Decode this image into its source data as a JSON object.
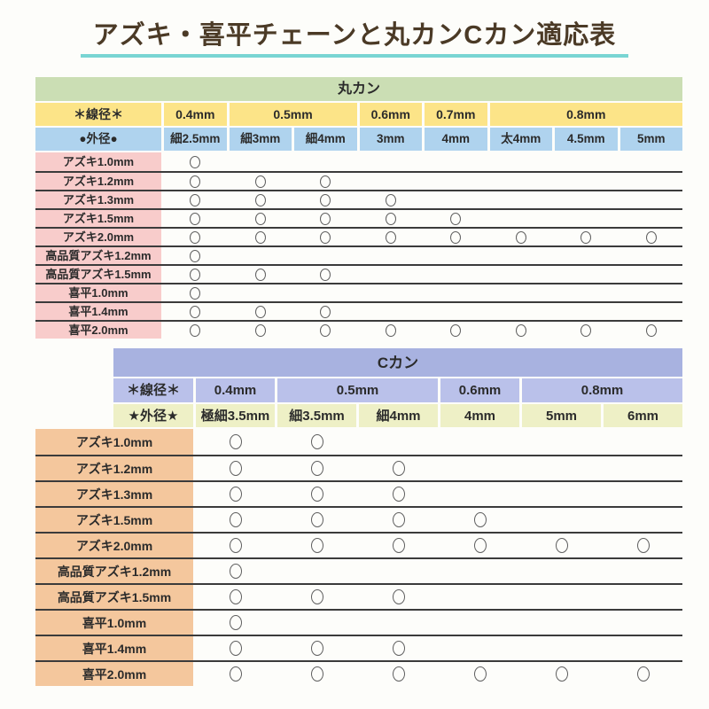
{
  "title": "アズキ・喜平チェーンと丸カンCカン適応表",
  "mark_symbol": "○",
  "colors": {
    "title_text": "#4b3a26",
    "title_underline": "#79d5d3",
    "maru_title_bg": "#cbdeb4",
    "maru_senkei_bg": "#fce488",
    "maru_gaikei_bg": "#afd3ee",
    "maru_label_bg": "#f8cccb",
    "c_title_bg": "#a8b2e0",
    "c_senkei_bg": "#bac1ea",
    "c_gaikei_bg": "#eef0c6",
    "c_label_bg": "#f4c79d",
    "row_line": "#3b3b3b",
    "circle": "#5f5f5f",
    "cell_text": "#2b2b2b"
  },
  "maru_table": {
    "title": "丸カン",
    "senkei_label": "＊線径＊",
    "gaikei_label": "●外径●",
    "senkei_groups": [
      {
        "label": "0.4mm",
        "span": 1
      },
      {
        "label": "0.5mm",
        "span": 2
      },
      {
        "label": "0.6mm",
        "span": 1
      },
      {
        "label": "0.7mm",
        "span": 1
      },
      {
        "label": "0.8mm",
        "span": 3
      }
    ],
    "gaikei_cols": [
      "細2.5mm",
      "細3mm",
      "細4mm",
      "3mm",
      "4mm",
      "太4mm",
      "4.5mm",
      "5mm"
    ],
    "rows": [
      {
        "label": "アズキ1.0mm",
        "marks": [
          1,
          0,
          0,
          0,
          0,
          0,
          0,
          0
        ]
      },
      {
        "label": "アズキ1.2mm",
        "marks": [
          1,
          1,
          1,
          0,
          0,
          0,
          0,
          0
        ]
      },
      {
        "label": "アズキ1.3mm",
        "marks": [
          1,
          1,
          1,
          1,
          0,
          0,
          0,
          0
        ]
      },
      {
        "label": "アズキ1.5mm",
        "marks": [
          1,
          1,
          1,
          1,
          1,
          0,
          0,
          0
        ]
      },
      {
        "label": "アズキ2.0mm",
        "marks": [
          1,
          1,
          1,
          1,
          1,
          1,
          1,
          1
        ]
      },
      {
        "label": "高品質アズキ1.2mm",
        "marks": [
          1,
          0,
          0,
          0,
          0,
          0,
          0,
          0
        ]
      },
      {
        "label": "高品質アズキ1.5mm",
        "marks": [
          1,
          1,
          1,
          0,
          0,
          0,
          0,
          0
        ]
      },
      {
        "label": "喜平1.0mm",
        "marks": [
          1,
          0,
          0,
          0,
          0,
          0,
          0,
          0
        ]
      },
      {
        "label": "喜平1.4mm",
        "marks": [
          1,
          1,
          1,
          0,
          0,
          0,
          0,
          0
        ]
      },
      {
        "label": "喜平2.0mm",
        "marks": [
          1,
          1,
          1,
          1,
          1,
          1,
          1,
          1
        ]
      }
    ]
  },
  "c_table": {
    "title": "Cカン",
    "senkei_label": "＊線径＊",
    "gaikei_label": "★外径★",
    "senkei_groups": [
      {
        "label": "0.4mm",
        "span": 1
      },
      {
        "label": "0.5mm",
        "span": 2
      },
      {
        "label": "0.6mm",
        "span": 1
      },
      {
        "label": "0.8mm",
        "span": 2
      }
    ],
    "gaikei_cols": [
      "極細3.5mm",
      "細3.5mm",
      "細4mm",
      "4mm",
      "5mm",
      "6mm"
    ],
    "rows": [
      {
        "label": "アズキ1.0mm",
        "marks": [
          1,
          1,
          0,
          0,
          0,
          0
        ]
      },
      {
        "label": "アズキ1.2mm",
        "marks": [
          1,
          1,
          1,
          0,
          0,
          0
        ]
      },
      {
        "label": "アズキ1.3mm",
        "marks": [
          1,
          1,
          1,
          0,
          0,
          0
        ]
      },
      {
        "label": "アズキ1.5mm",
        "marks": [
          1,
          1,
          1,
          1,
          0,
          0
        ]
      },
      {
        "label": "アズキ2.0mm",
        "marks": [
          1,
          1,
          1,
          1,
          1,
          1
        ]
      },
      {
        "label": "高品質アズキ1.2mm",
        "marks": [
          1,
          0,
          0,
          0,
          0,
          0
        ]
      },
      {
        "label": "高品質アズキ1.5mm",
        "marks": [
          1,
          1,
          1,
          0,
          0,
          0
        ]
      },
      {
        "label": "喜平1.0mm",
        "marks": [
          1,
          0,
          0,
          0,
          0,
          0
        ]
      },
      {
        "label": "喜平1.4mm",
        "marks": [
          1,
          1,
          1,
          0,
          0,
          0
        ]
      },
      {
        "label": "喜平2.0mm",
        "marks": [
          1,
          1,
          1,
          1,
          1,
          1
        ]
      }
    ]
  }
}
